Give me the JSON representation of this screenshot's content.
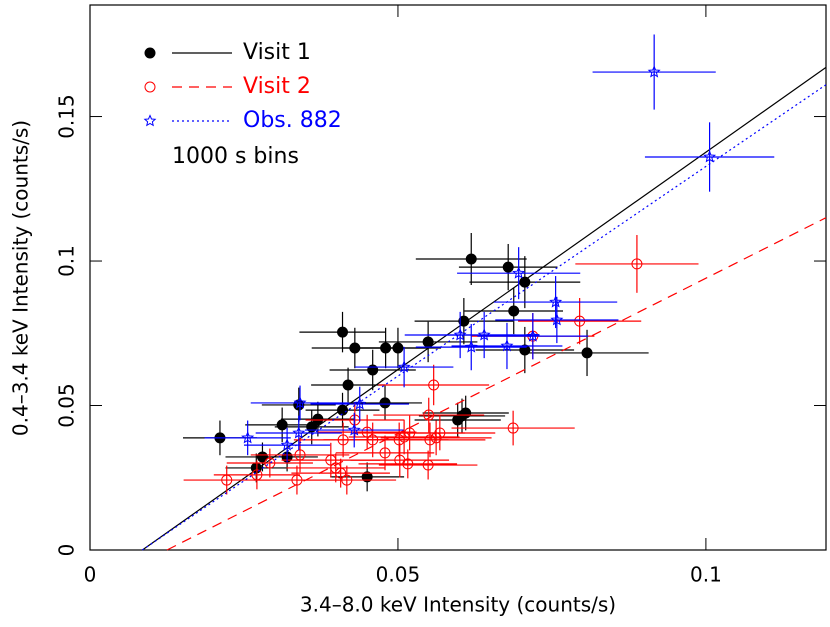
{
  "chart_data": {
    "type": "scatter",
    "xlabel": "3.4–8.0 keV Intensity (counts/s)",
    "ylabel": "0.4–3.4 keV Intensity (counts/s)",
    "annotation": "1000 s bins",
    "xlim": [
      0,
      0.1195
    ],
    "ylim": [
      0,
      0.1886
    ],
    "xticks": [
      0,
      0.05,
      0.1
    ],
    "yticks": [
      0,
      0.05,
      0.1,
      0.15
    ],
    "legend": "upper left",
    "series": [
      {
        "name": "Visit 1",
        "color": "#000000",
        "marker": "filled-circle",
        "linestyle": "solid",
        "x": [
          0.0211,
          0.027,
          0.028,
          0.0312,
          0.032,
          0.0339,
          0.036,
          0.037,
          0.041,
          0.041,
          0.0419,
          0.043,
          0.045,
          0.0459,
          0.048,
          0.0479,
          0.05,
          0.0549,
          0.0597,
          0.0604,
          0.061,
          0.0607,
          0.0619,
          0.0679,
          0.0688,
          0.0706,
          0.0706,
          0.0807
        ],
        "values": [
          0.0388,
          0.0284,
          0.0322,
          0.0433,
          0.0322,
          0.0502,
          0.0426,
          0.0453,
          0.0484,
          0.0754,
          0.0571,
          0.0699,
          0.0253,
          0.0623,
          0.0699,
          0.0509,
          0.0699,
          0.072,
          0.045,
          0.0464,
          0.0474,
          0.0792,
          0.1007,
          0.0979,
          0.0827,
          0.0927,
          0.0692,
          0.0682
        ],
        "xerr": [
          0.006,
          0.005,
          0.006,
          0.006,
          0.005,
          0.006,
          0.006,
          0.006,
          0.006,
          0.007,
          0.006,
          0.007,
          0.006,
          0.007,
          0.007,
          0.006,
          0.007,
          0.008,
          0.007,
          0.007,
          0.007,
          0.008,
          0.009,
          0.008,
          0.008,
          0.009,
          0.008,
          0.01
        ],
        "yerr": [
          0.006,
          0.005,
          0.005,
          0.006,
          0.005,
          0.006,
          0.006,
          0.006,
          0.006,
          0.007,
          0.006,
          0.007,
          0.005,
          0.007,
          0.007,
          0.006,
          0.007,
          0.007,
          0.006,
          0.006,
          0.006,
          0.008,
          0.009,
          0.008,
          0.008,
          0.009,
          0.008,
          0.008
        ],
        "fit_x": [
          0.0085,
          0.1195
        ],
        "fit_y": [
          0,
          0.167
        ]
      },
      {
        "name": "Visit 2",
        "color": "#ff0000",
        "marker": "open-circle",
        "linestyle": "dashed",
        "x": [
          0.0222,
          0.0271,
          0.0292,
          0.0336,
          0.0341,
          0.0391,
          0.0399,
          0.0407,
          0.0417,
          0.0411,
          0.043,
          0.045,
          0.0459,
          0.0479,
          0.0502,
          0.0503,
          0.051,
          0.0516,
          0.0519,
          0.055,
          0.0552,
          0.0562,
          0.0568,
          0.0558,
          0.0549,
          0.0687,
          0.0719,
          0.0795,
          0.0888
        ],
        "values": [
          0.0242,
          0.026,
          0.0301,
          0.0242,
          0.0329,
          0.0311,
          0.0284,
          0.0266,
          0.0242,
          0.0381,
          0.045,
          0.0408,
          0.0381,
          0.0336,
          0.0381,
          0.0311,
          0.0391,
          0.0298,
          0.0405,
          0.0467,
          0.0381,
          0.0388,
          0.0405,
          0.0571,
          0.0294,
          0.0422,
          0.074,
          0.0792,
          0.099
        ],
        "xerr": [
          0.007,
          0.007,
          0.007,
          0.007,
          0.008,
          0.008,
          0.008,
          0.008,
          0.008,
          0.008,
          0.008,
          0.008,
          0.008,
          0.008,
          0.008,
          0.008,
          0.009,
          0.008,
          0.009,
          0.009,
          0.009,
          0.009,
          0.009,
          0.009,
          0.008,
          0.01,
          0.01,
          0.01,
          0.01
        ],
        "yerr": [
          0.005,
          0.005,
          0.005,
          0.005,
          0.006,
          0.006,
          0.005,
          0.005,
          0.005,
          0.006,
          0.006,
          0.006,
          0.006,
          0.006,
          0.006,
          0.006,
          0.006,
          0.005,
          0.006,
          0.006,
          0.006,
          0.006,
          0.006,
          0.007,
          0.005,
          0.006,
          0.008,
          0.008,
          0.01
        ],
        "fit_x": [
          0.0125,
          0.1195
        ],
        "fit_y": [
          0,
          0.115
        ]
      },
      {
        "name": "Obs. 882",
        "color": "#0000ff",
        "marker": "star",
        "linestyle": "dotted",
        "x": [
          0.0256,
          0.032,
          0.0339,
          0.0341,
          0.0429,
          0.0438,
          0.051,
          0.0601,
          0.0619,
          0.064,
          0.0677,
          0.0696,
          0.0719,
          0.0758,
          0.0756,
          0.0916,
          0.1006
        ],
        "values": [
          0.0388,
          0.0363,
          0.0405,
          0.0509,
          0.0415,
          0.0505,
          0.0633,
          0.0744,
          0.0702,
          0.0744,
          0.0706,
          0.0958,
          0.074,
          0.0796,
          0.0858,
          0.1654,
          0.136
        ],
        "xerr": [
          0.007,
          0.007,
          0.007,
          0.008,
          0.008,
          0.008,
          0.008,
          0.009,
          0.009,
          0.009,
          0.009,
          0.01,
          0.009,
          0.01,
          0.01,
          0.01,
          0.0105
        ],
        "yerr": [
          0.006,
          0.006,
          0.006,
          0.006,
          0.006,
          0.006,
          0.007,
          0.008,
          0.008,
          0.008,
          0.008,
          0.009,
          0.008,
          0.008,
          0.009,
          0.013,
          0.012
        ],
        "fit_x": [
          0.0085,
          0.1195
        ],
        "fit_y": [
          0,
          0.161
        ]
      }
    ]
  }
}
